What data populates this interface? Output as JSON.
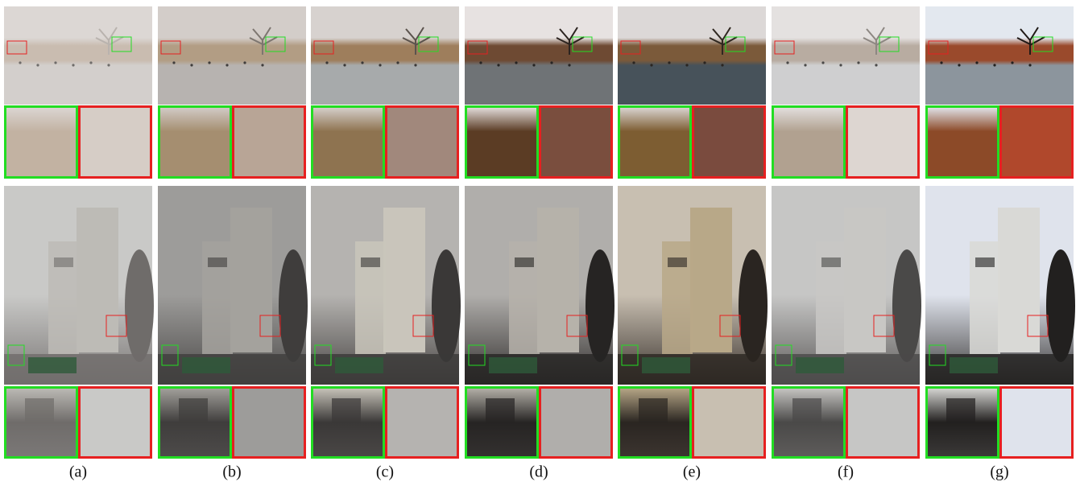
{
  "panels": [
    "(a)",
    "(b)",
    "(c)",
    "(d)",
    "(e)",
    "(f)",
    "(g)"
  ]
}
